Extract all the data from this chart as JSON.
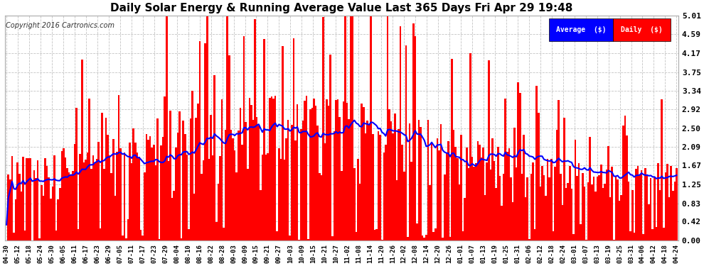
{
  "title": "Daily Solar Energy & Running Average Value Last 365 Days Fri Apr 29 19:48",
  "copyright": "Copyright 2016 Cartronics.com",
  "legend_avg": "Average  ($)",
  "legend_daily": "Daily  ($)",
  "ylim": [
    0.0,
    5.01
  ],
  "yticks": [
    0.0,
    0.42,
    0.83,
    1.25,
    1.67,
    2.09,
    2.5,
    2.92,
    3.34,
    3.75,
    4.17,
    4.59,
    5.01
  ],
  "bar_color": "#ff0000",
  "avg_line_color": "#0000ff",
  "bg_color": "#ffffff",
  "grid_color": "#aaaaaa",
  "title_color": "#000000",
  "n_days": 365,
  "x_labels": [
    "04-30",
    "05-12",
    "05-18",
    "05-24",
    "05-30",
    "06-05",
    "06-11",
    "06-17",
    "06-23",
    "06-29",
    "07-05",
    "07-11",
    "07-17",
    "07-23",
    "07-29",
    "08-04",
    "08-10",
    "08-16",
    "08-22",
    "08-28",
    "09-03",
    "09-09",
    "09-15",
    "09-21",
    "09-27",
    "10-03",
    "10-09",
    "10-15",
    "10-21",
    "10-27",
    "11-02",
    "11-08",
    "11-14",
    "11-20",
    "11-26",
    "12-02",
    "12-08",
    "12-14",
    "12-20",
    "12-26",
    "01-01",
    "01-07",
    "01-13",
    "01-19",
    "01-25",
    "01-31",
    "02-06",
    "02-12",
    "02-18",
    "02-24",
    "03-01",
    "03-07",
    "03-13",
    "03-19",
    "03-25",
    "03-31",
    "04-06",
    "04-12",
    "04-18",
    "04-24"
  ]
}
